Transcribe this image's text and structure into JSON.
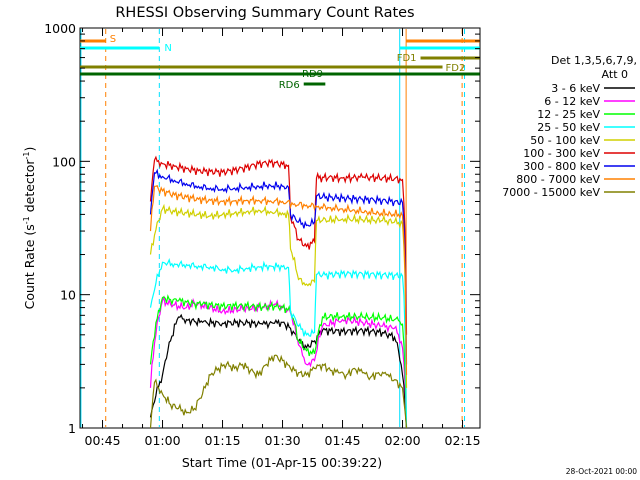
{
  "chart_data": {
    "type": "line",
    "title": "RHESSI Observing Summary Count Rates",
    "xlabel": "Start Time (01-Apr-15 00:39:22)",
    "ylabel_main": "Count Rate (s",
    "ylabel_sup1": "-1",
    "ylabel_mid": " detector",
    "ylabel_sup2": "-1",
    "ylabel_end": ")",
    "y_scale": "log",
    "ylim": [
      1,
      1000
    ],
    "xlim_minutes": [
      39.37,
      139.37
    ],
    "x_ticks": [
      {
        "minute": 45,
        "label": "00:45"
      },
      {
        "minute": 60,
        "label": "01:00"
      },
      {
        "minute": 75,
        "label": "01:15"
      },
      {
        "minute": 90,
        "label": "01:30"
      },
      {
        "minute": 105,
        "label": "01:45"
      },
      {
        "minute": 120,
        "label": "02:00"
      },
      {
        "minute": 135,
        "label": "02:15"
      }
    ],
    "y_ticks": [
      {
        "value": 1,
        "label": "1"
      },
      {
        "value": 10,
        "label": "10"
      },
      {
        "value": 100,
        "label": "100"
      },
      {
        "value": 1000,
        "label": "1000"
      }
    ],
    "legend_header": [
      "Det 1,3,5,6,7,9,",
      "Att 0"
    ],
    "series": [
      {
        "name": "3 - 6 keV",
        "color": "#000000",
        "x": [
          57,
          60,
          62,
          64,
          66,
          68,
          70,
          75,
          80,
          85,
          88,
          90,
          92,
          94,
          96,
          98,
          100,
          105,
          110,
          115,
          118,
          119,
          120,
          121
        ],
        "y": [
          1.2,
          2.5,
          4.5,
          6.8,
          6.5,
          6.3,
          6.2,
          6.1,
          6.2,
          6.0,
          6.1,
          6.2,
          5.6,
          4.5,
          4.0,
          4.5,
          5.4,
          5.3,
          5.4,
          5.2,
          4.8,
          3.8,
          2.5,
          1.0
        ]
      },
      {
        "name": "6 - 12 keV",
        "color": "#ff00ff",
        "x": [
          57,
          60,
          62,
          64,
          66,
          68,
          70,
          75,
          80,
          85,
          88,
          90,
          92,
          94,
          96,
          98,
          100,
          105,
          110,
          115,
          118,
          119,
          120,
          121
        ],
        "y": [
          2.0,
          9.0,
          8.5,
          8.2,
          8.0,
          8.6,
          8.3,
          7.5,
          7.8,
          8.0,
          8.5,
          8.2,
          7.3,
          4.2,
          3.0,
          3.2,
          5.8,
          6.5,
          6.2,
          5.8,
          5.6,
          5.0,
          4.0,
          1.0
        ]
      },
      {
        "name": "12 - 25 keV",
        "color": "#00ff00",
        "x": [
          57,
          60,
          62,
          64,
          66,
          68,
          70,
          75,
          80,
          85,
          88,
          90,
          92,
          94,
          96,
          98,
          100,
          105,
          110,
          115,
          118,
          119,
          120,
          121
        ],
        "y": [
          3.0,
          9.5,
          9.2,
          9.0,
          8.8,
          8.6,
          8.5,
          8.2,
          8.3,
          8.1,
          8.2,
          8.0,
          7.6,
          4.5,
          3.8,
          3.6,
          6.8,
          6.9,
          6.8,
          6.7,
          6.5,
          6.4,
          6.0,
          1.0
        ]
      },
      {
        "name": "25 - 50 keV",
        "color": "#00ffff",
        "x": [
          57,
          60,
          63,
          66,
          69,
          72,
          75,
          78,
          81,
          84,
          87,
          90,
          91.5,
          92,
          94,
          96,
          98,
          98.5,
          100,
          105,
          110,
          115,
          118,
          120,
          121
        ],
        "y": [
          8.0,
          17.5,
          17.0,
          16.8,
          16.4,
          16.2,
          15.5,
          15.3,
          15.8,
          16.2,
          16.4,
          16.2,
          16.0,
          7.5,
          5.8,
          5.0,
          5.2,
          14.2,
          14.0,
          14.4,
          14.3,
          14.1,
          14.0,
          13.8,
          1.0
        ]
      },
      {
        "name": "50 - 100 keV",
        "color": "#d0d000",
        "x": [
          57,
          60,
          63,
          66,
          69,
          72,
          75,
          78,
          81,
          84,
          87,
          90,
          91.5,
          92,
          94,
          96,
          98,
          98.5,
          100,
          105,
          110,
          115,
          118,
          120,
          121
        ],
        "y": [
          20,
          44,
          42,
          41,
          40,
          39,
          40,
          41,
          42,
          43,
          42,
          41,
          40,
          22,
          13,
          12,
          12.5,
          36,
          36,
          37,
          36.5,
          36,
          35,
          34,
          2.0
        ]
      },
      {
        "name": "100 - 300 keV",
        "color": "#dd0000",
        "x": [
          57,
          58,
          60,
          63,
          66,
          69,
          72,
          75,
          78,
          81,
          84,
          87,
          90,
          91.5,
          92,
          94,
          96,
          98,
          98.5,
          100,
          105,
          110,
          115,
          118,
          120,
          121
        ],
        "y": [
          50,
          102,
          96,
          92,
          88,
          85,
          84,
          83,
          86,
          90,
          96,
          98,
          95,
          93,
          38,
          26,
          23,
          25,
          75,
          76,
          75,
          76,
          75,
          74,
          73,
          5.0
        ]
      },
      {
        "name": "300 - 800 keV",
        "color": "#0000ee",
        "x": [
          57,
          58,
          60,
          63,
          66,
          69,
          72,
          75,
          78,
          81,
          84,
          87,
          90,
          91.5,
          92,
          94,
          96,
          98,
          98.5,
          100,
          105,
          110,
          115,
          118,
          120,
          121
        ],
        "y": [
          40,
          82,
          77,
          72,
          68,
          65,
          63,
          62,
          63,
          64,
          65,
          66,
          65,
          64,
          40,
          35,
          33,
          35,
          55,
          54,
          53,
          52,
          51,
          50,
          49,
          3.0
        ]
      },
      {
        "name": "800 - 7000 keV",
        "color": "#ff8000",
        "x": [
          57,
          58,
          60,
          63,
          66,
          69,
          72,
          75,
          78,
          81,
          84,
          87,
          90,
          93,
          96,
          99,
          102,
          105,
          108,
          111,
          114,
          117,
          119,
          120,
          121
        ],
        "y": [
          30,
          65,
          60,
          56,
          54,
          52,
          51,
          50,
          50.5,
          51,
          51,
          50.5,
          50,
          48,
          47,
          46,
          45,
          44,
          43,
          42,
          41,
          40.5,
          40,
          39,
          2.5
        ]
      },
      {
        "name": "7000 - 15000 keV",
        "color": "#808000",
        "x": [
          57,
          58,
          60,
          62,
          64,
          66,
          68,
          70,
          72,
          74,
          76,
          78,
          80,
          82,
          84,
          86,
          88,
          90,
          92,
          94,
          96,
          98,
          100,
          102,
          104,
          106,
          108,
          110,
          112,
          114,
          116,
          118,
          120,
          121
        ],
        "y": [
          1.0,
          2.2,
          1.8,
          1.5,
          1.4,
          1.3,
          1.4,
          1.8,
          2.5,
          2.8,
          3.0,
          2.8,
          3.0,
          2.7,
          2.5,
          3.0,
          3.5,
          3.2,
          2.8,
          2.6,
          2.5,
          2.8,
          3.0,
          2.7,
          2.6,
          2.5,
          2.8,
          2.6,
          2.4,
          2.6,
          2.5,
          2.3,
          2.0,
          1.0
        ]
      }
    ],
    "events": [
      {
        "label": "S",
        "color": "#ff8000",
        "minute": 45.8,
        "dashed": true
      },
      {
        "label": "N",
        "color": "#00e0ff",
        "minute": 59.2,
        "dashed": true
      },
      {
        "label": "",
        "color": "#00e0ff",
        "minute": 39.6,
        "dashed": false
      },
      {
        "label": "",
        "color": "#00e0ff",
        "minute": 119.3,
        "dashed": false
      },
      {
        "label": "",
        "color": "#ff8000",
        "minute": 120.9,
        "dashed": false
      },
      {
        "label": "",
        "color": "#ff8000",
        "minute": 134.9,
        "dashed": true
      },
      {
        "label": "",
        "color": "#00e0ff",
        "minute": 135.5,
        "dashed": true
      }
    ],
    "flag_bars": [
      {
        "label": "S",
        "color": "#ff8000",
        "start": 39.4,
        "end": 45.8,
        "level": 0
      },
      {
        "label": "N",
        "color": "#00ffff",
        "start": 39.4,
        "end": 59.2,
        "level": 1
      },
      {
        "label": "",
        "color": "#ff8000",
        "start": 120.9,
        "end": 139.3,
        "level": 0
      },
      {
        "label": "",
        "color": "#00ffff",
        "start": 119.3,
        "end": 139.3,
        "level": 1
      },
      {
        "label": "FD1",
        "color": "#808000",
        "start": 124.5,
        "end": 139.3,
        "level": 2
      },
      {
        "label": "FD2",
        "color": "#808000",
        "start": 39.4,
        "end": 130.0,
        "level": 3
      },
      {
        "label": "RD9",
        "color": "#006400",
        "start": 39.4,
        "end": 139.3,
        "level": 4
      },
      {
        "label": "RD6",
        "color": "#006400",
        "start": 95.3,
        "end": 100.7,
        "level": 5
      }
    ],
    "legend_placement": "right",
    "grid": false
  },
  "footer_date": "28-Oct-2021 00:00"
}
